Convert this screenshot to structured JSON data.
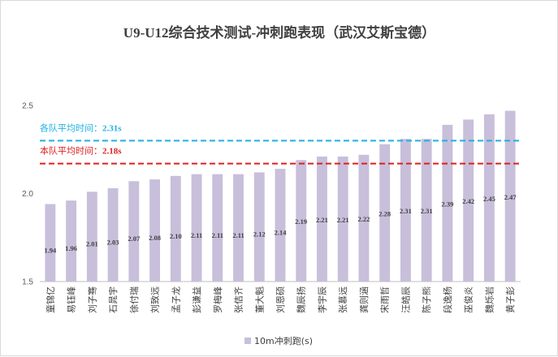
{
  "chart_data": {
    "type": "bar",
    "title": "U9-U12综合技术测试-冲刺跑表现（武汉艾斯宝德）",
    "categories": [
      "童锦亿",
      "易钰峰",
      "刘子骞",
      "石晁宇",
      "徐付瑞",
      "刘致远",
      "孟子龙",
      "彭谦益",
      "罗梅峰",
      "张佶齐",
      "董大魁",
      "刘恩硕",
      "魏辰扬",
      "李宇辰",
      "张慕远",
      "龚则涵",
      "宋雨哲",
      "汪皓辰",
      "陈子熊",
      "段逸杨",
      "巫俊炎",
      "魏烁岩",
      "黄子彭"
    ],
    "series": [
      {
        "name": "10m冲刺跑(s)",
        "values": [
          1.94,
          1.96,
          2.01,
          2.03,
          2.07,
          2.08,
          2.1,
          2.11,
          2.11,
          2.11,
          2.12,
          2.14,
          2.19,
          2.21,
          2.21,
          2.22,
          2.28,
          2.31,
          2.31,
          2.39,
          2.42,
          2.45,
          2.47
        ]
      }
    ],
    "ylim": [
      1.5,
      2.5
    ],
    "yticks": [
      "1.5",
      "2.0",
      "2.5"
    ],
    "grid": false,
    "legend": "bottom",
    "annotations": [
      {
        "label": "各队平均时间：",
        "value_text": "2.31s",
        "value": 2.3,
        "color": "#1fb1e0"
      },
      {
        "label": "本队平均时间：",
        "value_text": "2.18s",
        "value": 2.17,
        "color": "#e01f1f"
      }
    ],
    "colors": {
      "bar": "#c8bfdb",
      "axis": "#bfbfbf"
    }
  }
}
